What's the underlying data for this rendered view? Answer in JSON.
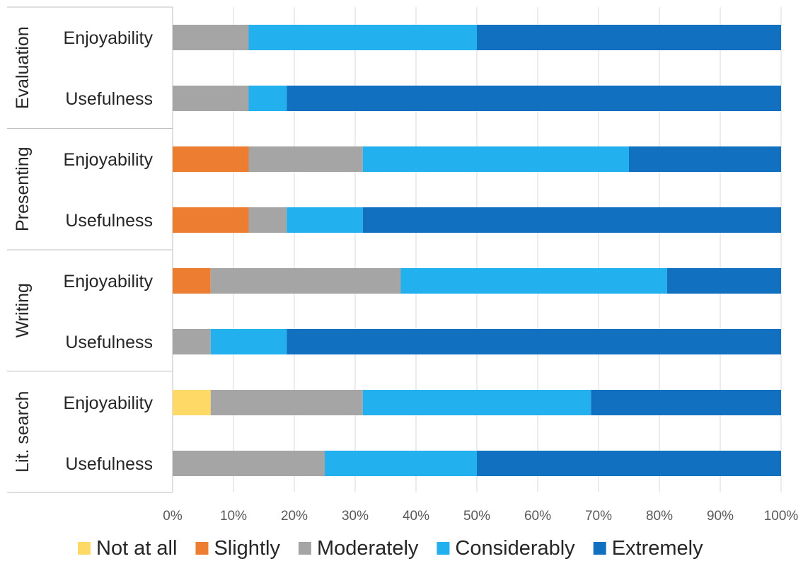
{
  "chart_data": {
    "type": "bar",
    "orientation": "horizontal",
    "stacked": "percent",
    "groups": [
      {
        "name": "Evaluation",
        "categories": [
          "Enjoyability",
          "Usefulness"
        ]
      },
      {
        "name": "Presenting",
        "categories": [
          "Enjoyability",
          "Usefulness"
        ]
      },
      {
        "name": "Writing",
        "categories": [
          "Enjoyability",
          "Usefulness"
        ]
      },
      {
        "name": "Lit. search",
        "categories": [
          "Enjoyability",
          "Usefulness"
        ]
      }
    ],
    "series": [
      {
        "name": "Not at all",
        "color": "#FFD966",
        "values": [
          0,
          0,
          0,
          0,
          0,
          0,
          6.25,
          0
        ]
      },
      {
        "name": "Slightly",
        "color": "#ED7D31",
        "values": [
          0,
          0,
          12.5,
          12.5,
          6.25,
          0,
          0,
          0
        ]
      },
      {
        "name": "Moderately",
        "color": "#A5A5A5",
        "values": [
          12.5,
          12.5,
          18.75,
          6.25,
          31.25,
          6.25,
          25,
          25
        ]
      },
      {
        "name": "Considerably",
        "color": "#22B0EE",
        "values": [
          37.5,
          6.25,
          43.75,
          12.5,
          43.75,
          12.5,
          37.5,
          25
        ]
      },
      {
        "name": "Extremely",
        "color": "#1170BF",
        "values": [
          50,
          81.25,
          25,
          68.75,
          18.75,
          81.25,
          31.25,
          50
        ]
      }
    ],
    "x_ticks": [
      "0%",
      "10%",
      "20%",
      "30%",
      "40%",
      "50%",
      "60%",
      "70%",
      "80%",
      "90%",
      "100%"
    ],
    "xlim": [
      0,
      100
    ],
    "grid": "vertical",
    "legend_position": "bottom"
  }
}
